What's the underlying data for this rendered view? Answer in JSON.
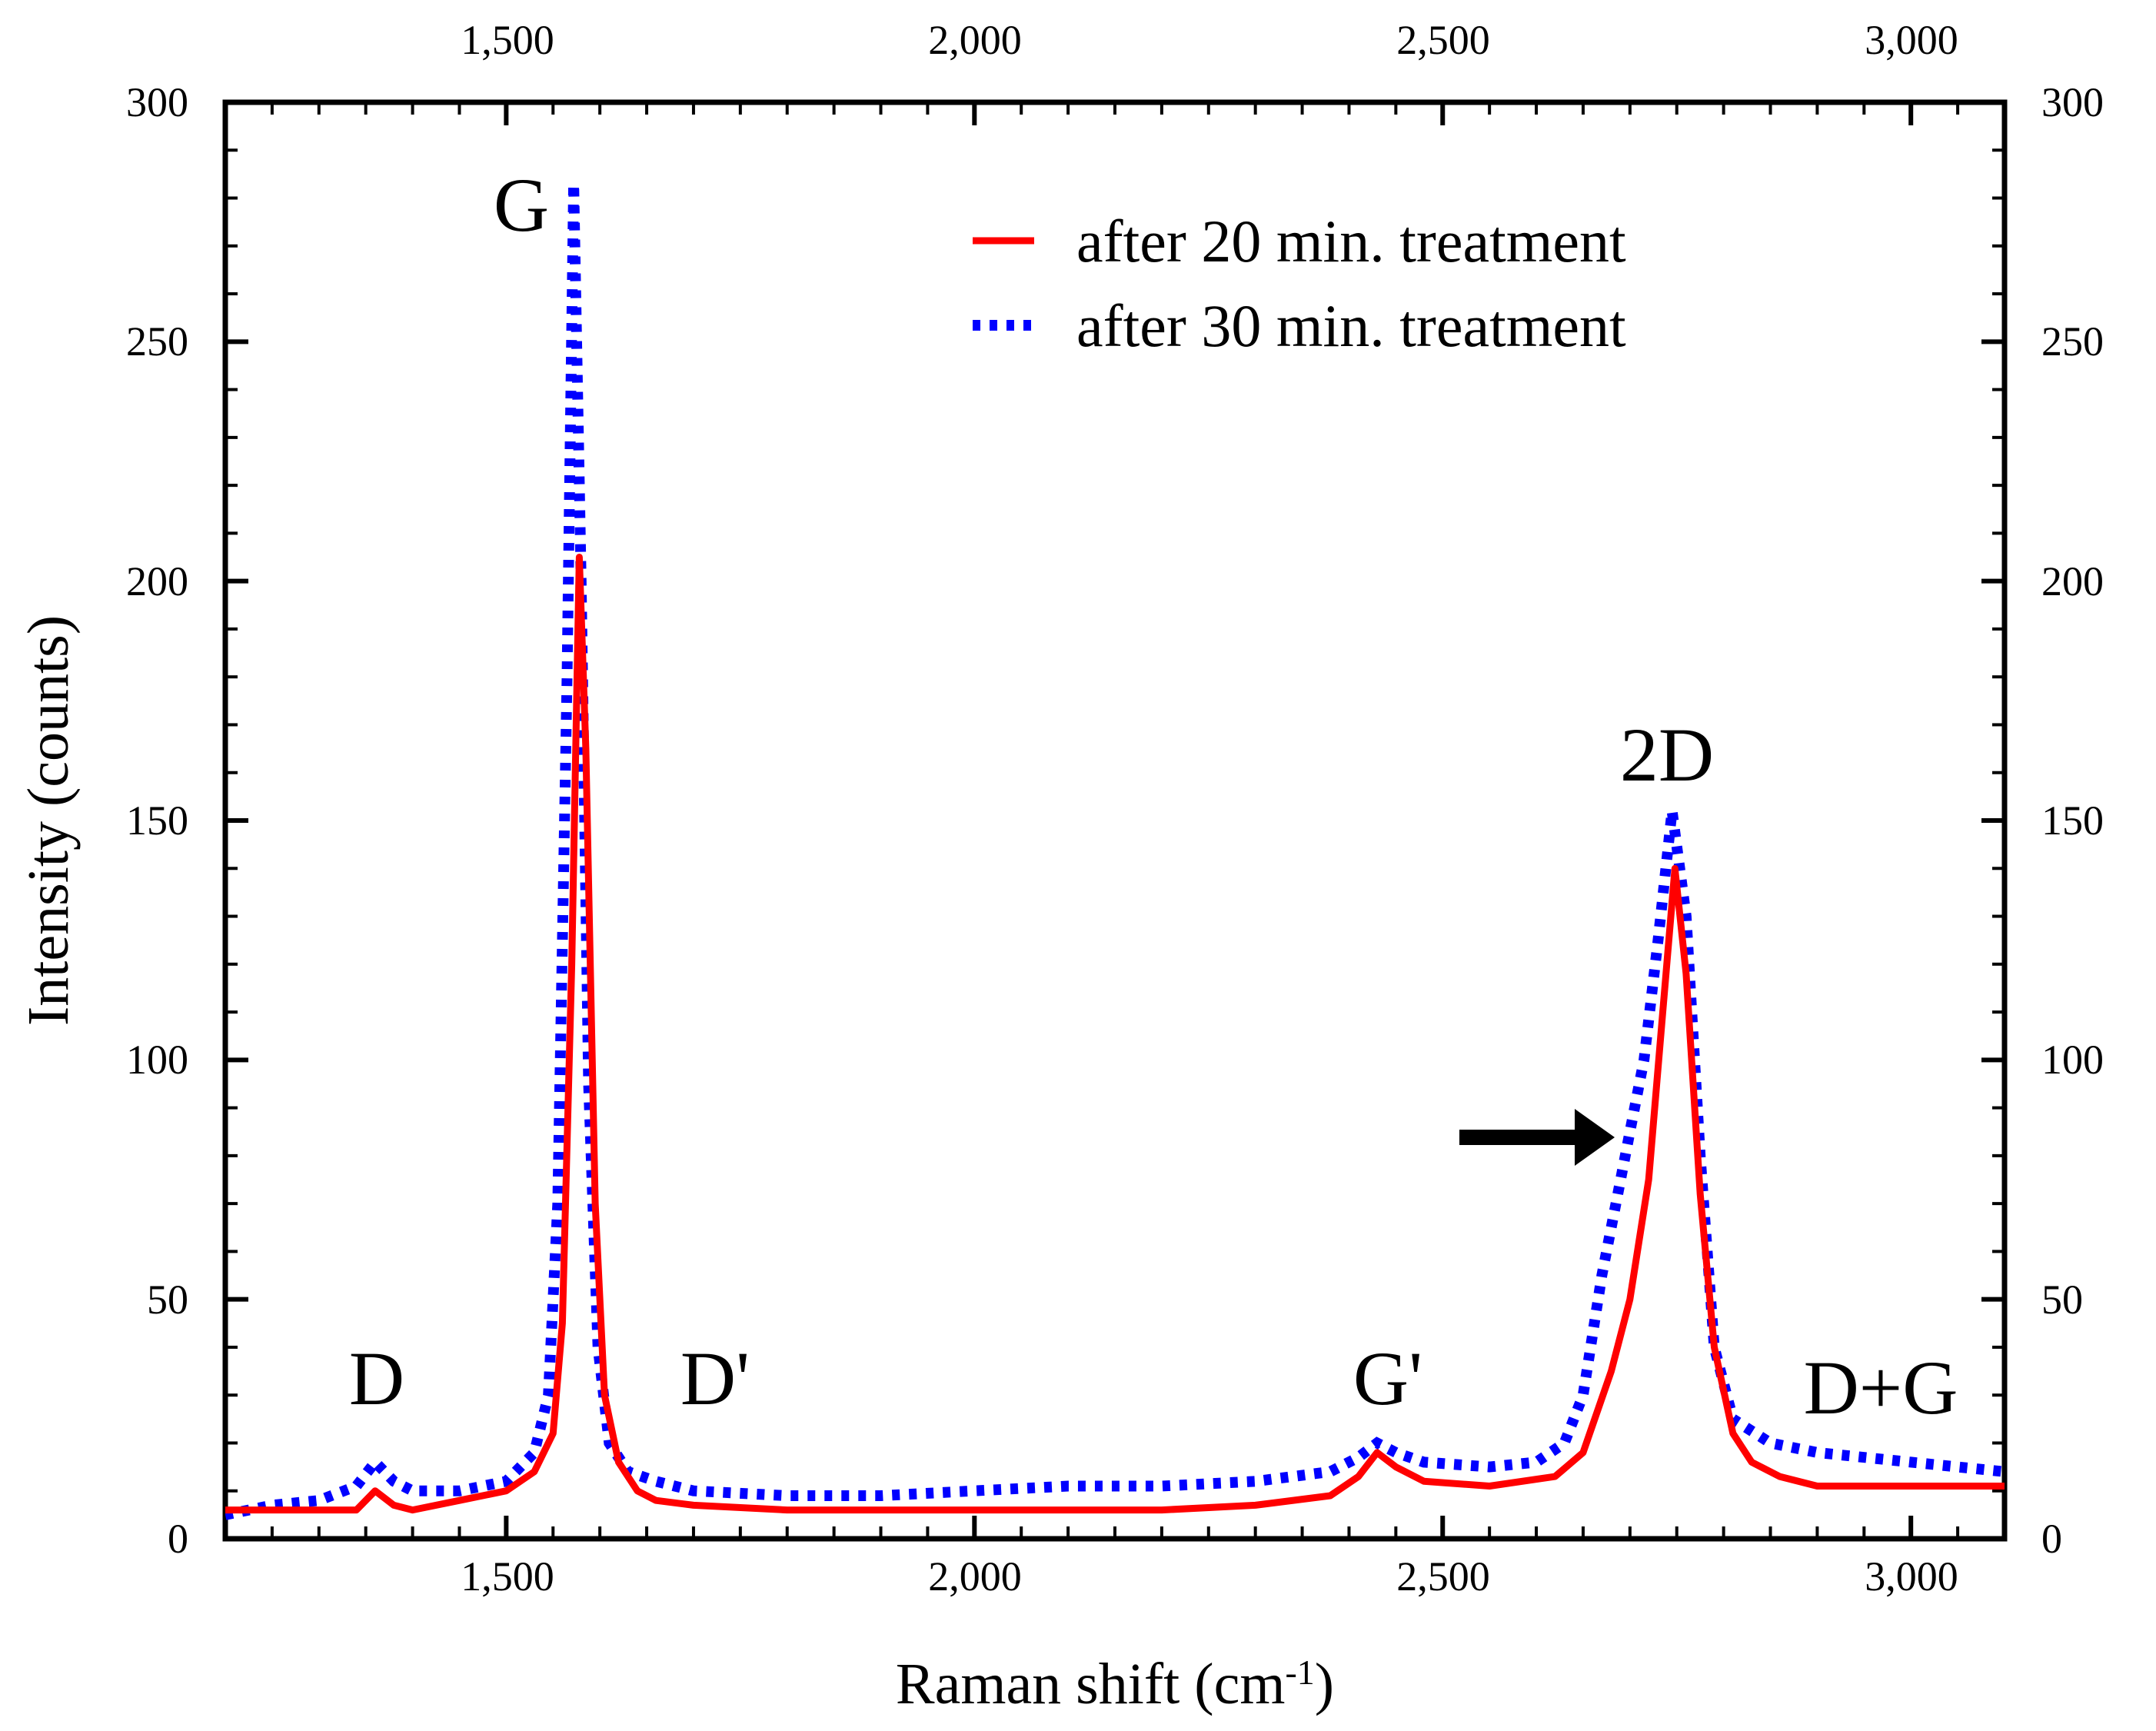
{
  "chart_data": {
    "type": "line",
    "title": "",
    "xlabel": "Raman shift (cm",
    "xlabel_sup": "-1",
    "xlabel_close": ")",
    "ylabel": "Intensity (counts)",
    "xlim": [
      1200,
      3100
    ],
    "ylim": [
      0,
      300
    ],
    "x_ticks": [
      1500,
      2000,
      2500,
      3000
    ],
    "x_tick_labels": [
      "1,500",
      "2,000",
      "2,500",
      "3,000"
    ],
    "y_ticks": [
      0,
      50,
      100,
      150,
      200,
      250,
      300
    ],
    "y_tick_labels": [
      "0",
      "50",
      "100",
      "150",
      "200",
      "250",
      "300"
    ],
    "grid": false,
    "legend_position": "top-right",
    "series": [
      {
        "name": "after 20 min. treatment",
        "color": "#ff0000",
        "style": "solid",
        "x": [
          1200,
          1250,
          1300,
          1340,
          1360,
          1380,
          1400,
          1450,
          1500,
          1530,
          1550,
          1560,
          1570,
          1578,
          1585,
          1595,
          1605,
          1620,
          1640,
          1660,
          1700,
          1800,
          1900,
          2000,
          2100,
          2200,
          2300,
          2380,
          2410,
          2430,
          2450,
          2480,
          2550,
          2620,
          2650,
          2680,
          2700,
          2720,
          2735,
          2748,
          2760,
          2775,
          2790,
          2810,
          2830,
          2860,
          2900,
          3000,
          3100
        ],
        "values": [
          6,
          6,
          6,
          6,
          10,
          7,
          6,
          8,
          10,
          14,
          22,
          45,
          120,
          205,
          165,
          70,
          30,
          16,
          10,
          8,
          7,
          6,
          6,
          6,
          6,
          6,
          7,
          9,
          13,
          18,
          15,
          12,
          11,
          13,
          18,
          35,
          50,
          75,
          110,
          140,
          118,
          72,
          40,
          22,
          16,
          13,
          11,
          11,
          11
        ]
      },
      {
        "name": "after 30 min. treatment",
        "color": "#0000ff",
        "style": "dotted",
        "x": [
          1200,
          1250,
          1300,
          1340,
          1360,
          1380,
          1400,
          1450,
          1500,
          1530,
          1545,
          1555,
          1565,
          1572,
          1580,
          1588,
          1598,
          1610,
          1630,
          1660,
          1700,
          1800,
          1900,
          2000,
          2100,
          2200,
          2300,
          2380,
          2410,
          2430,
          2450,
          2480,
          2550,
          2600,
          2630,
          2650,
          2670,
          2690,
          2700,
          2715,
          2730,
          2745,
          2760,
          2775,
          2790,
          2810,
          2850,
          2900,
          3000,
          3100
        ],
        "values": [
          5,
          7,
          8,
          11,
          16,
          12,
          10,
          10,
          12,
          18,
          30,
          70,
          180,
          283,
          200,
          95,
          40,
          20,
          14,
          12,
          10,
          9,
          9,
          10,
          11,
          11,
          12,
          14,
          17,
          20,
          18,
          16,
          15,
          16,
          20,
          30,
          55,
          75,
          85,
          100,
          125,
          152,
          130,
          80,
          40,
          25,
          20,
          18,
          16,
          14
        ]
      }
    ],
    "annotations": [
      "G",
      "2D",
      "D",
      "D'",
      "G'",
      "D+G"
    ]
  }
}
